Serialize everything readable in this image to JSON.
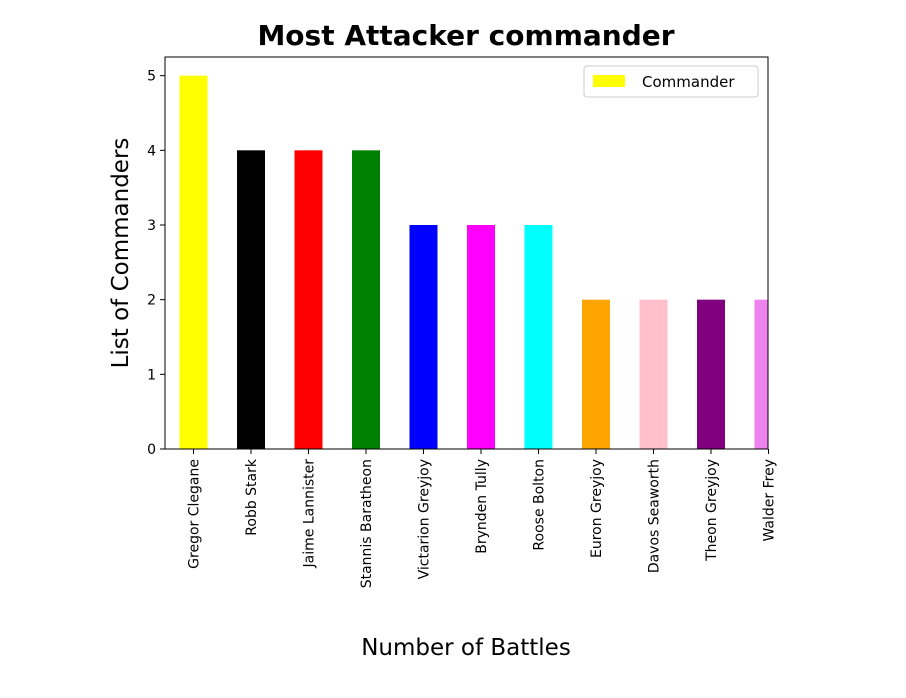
{
  "chart_data": {
    "type": "bar",
    "title": "Most Attacker commander",
    "xlabel": "Number of Battles",
    "ylabel": "List of Commanders",
    "categories": [
      "Gregor Clegane",
      "Robb Stark",
      "Jaime Lannister",
      "Stannis Baratheon",
      "Victarion Greyjoy",
      "Brynden Tully",
      "Roose Bolton",
      "Euron Greyjoy",
      "Davos Seaworth",
      "Theon Greyjoy",
      "Walder Frey"
    ],
    "series": [
      {
        "name": "Commander",
        "values": [
          5,
          4,
          4,
          4,
          3,
          3,
          3,
          2,
          2,
          2,
          2
        ]
      }
    ],
    "bar_colors": [
      "#ffff00",
      "#000000",
      "#ff0000",
      "#008000",
      "#0000ff",
      "#ff00ff",
      "#00ffff",
      "#ffa500",
      "#ffc0cb",
      "#800080",
      "#ee82ee"
    ],
    "legend_color": "#ffff00",
    "ylim": [
      0,
      5.25
    ],
    "yticks": [
      0,
      1,
      2,
      3,
      4,
      5
    ],
    "legend_position": "top-right",
    "grid": false
  }
}
